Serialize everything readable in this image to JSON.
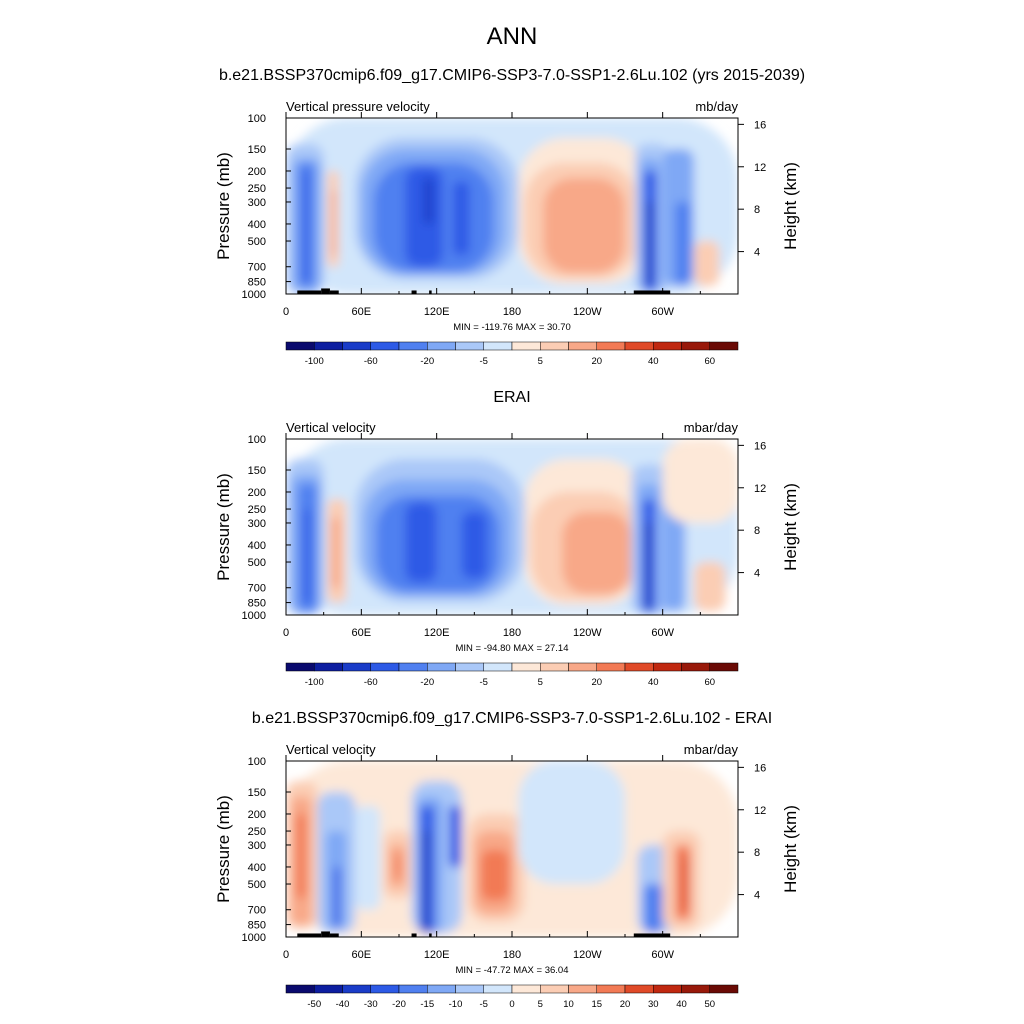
{
  "figure": {
    "title": "ANN",
    "case_title": "b.e21.BSSP370cmip6.f09_g17.CMIP6-SSP3-7.0-SSP1-2.6Lu.102 (yrs 2015-2039)"
  },
  "chart_data": [
    {
      "type": "heatmap",
      "title": "b.e21.BSSP370cmip6.f09_g17.CMIP6-SSP3-7.0-SSP1-2.6Lu.102 (yrs 2015-2039)",
      "left_label": "Vertical pressure velocity",
      "units": "mb/day",
      "ylabel": "Pressure (mb)",
      "y2label": "Height (km)",
      "x_ticks": [
        "0",
        "60E",
        "120E",
        "180",
        "120W",
        "60W"
      ],
      "y_ticks": [
        "100",
        "150",
        "200",
        "250",
        "300",
        "400",
        "500",
        "700",
        "850",
        "1000"
      ],
      "y2_ticks": [
        "16",
        "12",
        "8",
        "4"
      ],
      "stats": "MIN = -119.76  MAX =  30.70",
      "colorbar_labels": [
        "-100",
        "-60",
        "-20",
        "-5",
        "5",
        "20",
        "40",
        "60"
      ],
      "min": -119.76,
      "max": 30.7,
      "pattern": "model"
    },
    {
      "type": "heatmap",
      "title": "ERAI",
      "left_label": "Vertical velocity",
      "units": "mbar/day",
      "ylabel": "Pressure (mb)",
      "y2label": "Height (km)",
      "x_ticks": [
        "0",
        "60E",
        "120E",
        "180",
        "120W",
        "60W"
      ],
      "y_ticks": [
        "100",
        "150",
        "200",
        "250",
        "300",
        "400",
        "500",
        "700",
        "850",
        "1000"
      ],
      "y2_ticks": [
        "16",
        "12",
        "8",
        "4"
      ],
      "stats": "MIN = -94.80  MAX =  27.14",
      "colorbar_labels": [
        "-100",
        "-60",
        "-20",
        "-5",
        "5",
        "20",
        "40",
        "60"
      ],
      "min": -94.8,
      "max": 27.14,
      "pattern": "obs"
    },
    {
      "type": "heatmap",
      "title": "b.e21.BSSP370cmip6.f09_g17.CMIP6-SSP3-7.0-SSP1-2.6Lu.102 - ERAI",
      "left_label": "Vertical velocity",
      "units": "mbar/day",
      "ylabel": "Pressure (mb)",
      "y2label": "Height (km)",
      "x_ticks": [
        "0",
        "60E",
        "120E",
        "180",
        "120W",
        "60W"
      ],
      "y_ticks": [
        "100",
        "150",
        "200",
        "250",
        "300",
        "400",
        "500",
        "700",
        "850",
        "1000"
      ],
      "y2_ticks": [
        "16",
        "12",
        "8",
        "4"
      ],
      "stats": "MIN = -47.72  MAX =  36.04",
      "colorbar_labels": [
        "-50",
        "-40",
        "-30",
        "-20",
        "-15",
        "-10",
        "-5",
        "0",
        "5",
        "10",
        "15",
        "20",
        "30",
        "40",
        "50"
      ],
      "min": -47.72,
      "max": 36.04,
      "pattern": "diff"
    }
  ],
  "colors": {
    "colorbar": [
      "#0a0a6e",
      "#0d1ea0",
      "#1a3cc8",
      "#2d5ae6",
      "#5080f0",
      "#7fa8f5",
      "#aac8f8",
      "#d2e6fb",
      "#fde8d8",
      "#fbcdb4",
      "#f8a888",
      "#f27a55",
      "#e04a28",
      "#c02810",
      "#98190a",
      "#6a0a05"
    ]
  }
}
